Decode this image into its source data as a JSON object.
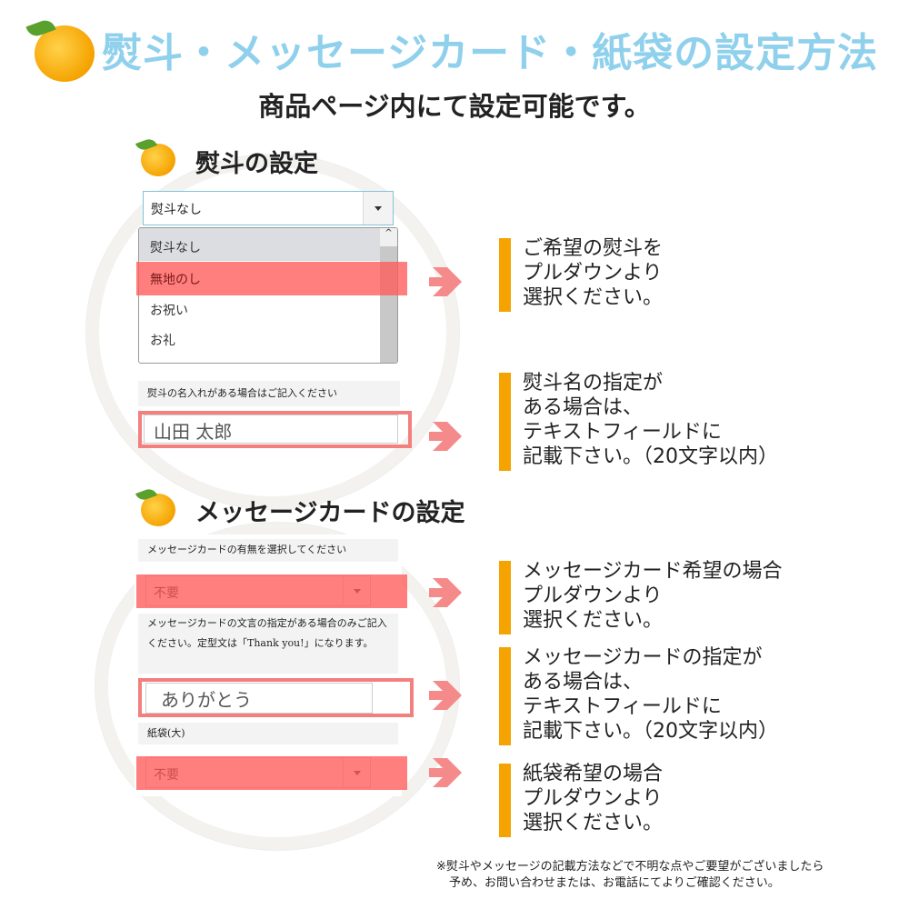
{
  "header": {
    "title": "熨斗・メッセージカード・紙袋の設定方法",
    "subtitle": "商品ページ内にて設定可能です。"
  },
  "noshi": {
    "heading": "熨斗の設定",
    "selected": "熨斗なし",
    "options": [
      "熨斗なし",
      "無地のし",
      "お祝い",
      "お礼"
    ],
    "highlighted_option": "無地のし",
    "name_label": "熨斗の名入れがある場合はご記入ください",
    "name_value": "山田 太郎"
  },
  "message": {
    "heading": "メッセージカードの設定",
    "card_label": "メッセージカードの有無を選択してください",
    "card_value": "不要",
    "text_label": "メッセージカードの文言の指定がある場合のみご記入ください。定型文は「Thank you!」になります。",
    "text_value": "ありがとう",
    "bag_label": "紙袋(大)",
    "bag_value": "不要"
  },
  "notes": [
    [
      "ご希望の熨斗を",
      "プルダウンより",
      "選択ください。"
    ],
    [
      "熨斗名の指定が",
      "ある場合は、",
      "テキストフィールドに",
      "記載下さい。（20文字以内）"
    ],
    [
      "メッセージカード希望の場合",
      "プルダウンより",
      "選択ください。"
    ],
    [
      "メッセージカードの指定が",
      "ある場合は、",
      "テキストフィールドに",
      "記載下さい。（20文字以内）"
    ],
    [
      "紙袋希望の場合",
      "プルダウンより",
      "選択ください。"
    ]
  ],
  "footnote": [
    "※熨斗やメッセージの記載方法などで不明な点やご要望がございましたら",
    "予め、お問い合わせまたは、お電話にてよりご確認ください。"
  ],
  "colors": {
    "title": "#8fd0ec",
    "accent_bar": "#f5a300",
    "highlight": "#ff5a5a",
    "arrow": "#f58a8a"
  },
  "icons": [
    "orange-icon",
    "arrow-right-icon",
    "caret-down-icon"
  ]
}
